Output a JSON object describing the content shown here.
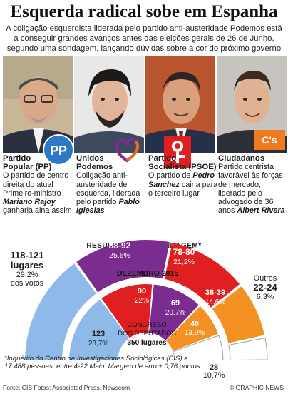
{
  "title": "Esquerda radical sobe em Espanha",
  "subtitle": "A coligação esquerdista liderada pelo partido anti-austeridade Podemos está a conseguir grandes avanços antes das eleições gerais de 26 de Junho, segundo uma sondagem, lançando dúvidas sobre a cor do próximo governo",
  "parties": [
    {
      "name_line1": "Partido",
      "name_line2": "Popular (PP)",
      "desc": "O partido de centro direita do atual Primeiro-ministro",
      "leader": "Mariano Rajoy",
      "desc_after": "ganharia aina assim",
      "logo": "pp-logo",
      "color": "#3f8ed8"
    },
    {
      "name_line1": "Unidos",
      "name_line2": "Podemos",
      "desc": "Coligação anti-austeridade de esquerda, liderada pelo partido",
      "leader": "Pablo Iglesias",
      "desc_after": "",
      "logo": "unidos-podemos-heart-logo",
      "color": "#7b2c8f"
    },
    {
      "name_line1": "Partido",
      "name_line2": "Socialista (PSOE)",
      "desc": "O partido de",
      "leader": "Pedro Sanchez",
      "desc_after": "cairia para o terceiro lugar",
      "logo": "psoe-rose-logo",
      "color": "#e02020"
    },
    {
      "name_line1": "Ciudadanos",
      "name_line2": "",
      "desc": "Partido centrista favorável às forças de mercado, liderado pelo advogado de 36 anos",
      "leader": "Albert Rivera",
      "desc_after": "",
      "logo": "cs-logo",
      "color": "#f39223"
    }
  ],
  "cs_logo_text": "C's",
  "results_title": "RESULTADOS DA SONDAGEM*",
  "chart_data": {
    "type": "pie",
    "title": "RESULTADOS DA SONDAGEM*",
    "rings": [
      {
        "label": "Sondagem",
        "series": [
          {
            "name": "PP",
            "seats": "118-121",
            "share_pct": 29.2,
            "color": "#8fb9e8"
          },
          {
            "name": "Unidos Podemos",
            "seats": "88-92",
            "share_pct": 25.6,
            "color": "#7b2c8f"
          },
          {
            "name": "PSOE",
            "seats": "78-80",
            "share_pct": 21.2,
            "color": "#e02020"
          },
          {
            "name": "Ciudadanos",
            "seats": "38-39",
            "share_pct": 14.6,
            "color": "#f39223"
          },
          {
            "name": "Outros",
            "seats": "22-24",
            "share_pct": 6.3,
            "color": "#ffffff"
          }
        ]
      },
      {
        "label": "DEZEMBRO 2015",
        "series": [
          {
            "name": "PP",
            "seats": "123",
            "share_pct": 28.7,
            "color": "#8fb9e8"
          },
          {
            "name": "PSOE",
            "seats": "90",
            "share_pct": 22,
            "color": "#e02020"
          },
          {
            "name": "Podemos",
            "seats": "69",
            "share_pct": 20.7,
            "color": "#7b2c8f"
          },
          {
            "name": "Ciudadanos",
            "seats": "40",
            "share_pct": 13.9,
            "color": "#f39223"
          },
          {
            "name": "Outros",
            "seats": "28",
            "share_pct": 10.7,
            "color": "#ffffff"
          }
        ]
      }
    ]
  },
  "left_label": {
    "seats": "118-121",
    "unit": "lugares",
    "pct": "29,2%",
    "note": "dos votos"
  },
  "right_label": {
    "name": "Outros",
    "seats": "22-24",
    "pct": "6,3%"
  },
  "outer_labels": {
    "podemos": {
      "seats": "88-92",
      "pct": "25,6%"
    },
    "psoe": {
      "seats": "78-80",
      "pct": "21,2%"
    },
    "cs": {
      "seats": "38-39",
      "pct": "14,6%"
    }
  },
  "december_label": "DEZEMBRO 2015",
  "inner_labels": {
    "pp": {
      "seats": "123",
      "pct": "28,7%"
    },
    "psoe": {
      "seats": "90",
      "pct": "22%"
    },
    "podemos": {
      "seats": "69",
      "pct": "20,7%"
    },
    "cs": {
      "seats": "40",
      "pct": "13,9%"
    }
  },
  "congress_line1": "CONGRESO",
  "congress_line2": "DOS DEPUTADOS",
  "congress_line3": "350 lugares",
  "others_dec": {
    "seats": "28",
    "pct": "10,7%"
  },
  "footnote": "*Inquérito do Centro de Investigaciones Sociológicas (CIS) a 17.488 pessoas, entre 4-22 Maio. Margem de erro ± 0,76 pontos",
  "credit_source": "Fonte: CIS      Fotos: Associated Press, Newscom",
  "credit_right": "© GRAPHIC NEWS"
}
